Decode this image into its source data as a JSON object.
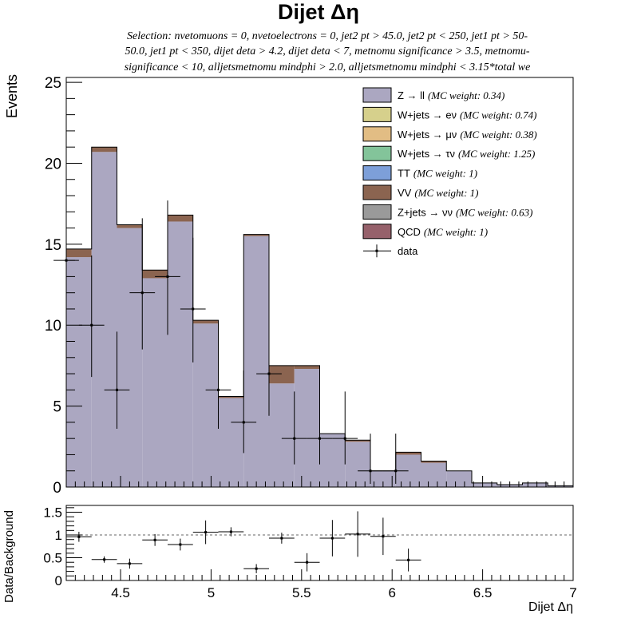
{
  "title": "Dijet Δη",
  "selection_lines": [
    "Selection: nvetomuons = 0, nvetoelectrons = 0, jet2 pt > 45.0, jet2 pt < 250, jet1 pt > 50-",
    "50.0, jet1 pt < 350, dijet deta > 4.2, dijet deta < 7, metnomu significance > 3.5, metnomu-",
    "significance < 10, alljetsmetnomu mindphi > 2.0, alljetsmetnomu mindphi < 3.15*total we"
  ],
  "colors": {
    "zll": "#aba7c1",
    "vv": "#8b6450",
    "wev": "#d6d08c",
    "wmv": "#e2bd84",
    "wtv": "#83c49a",
    "tt": "#7d9fd9",
    "znn": "#9a9a9a",
    "qcd": "#96616b"
  },
  "chart_data": [
    {
      "type": "bar",
      "subtype": "stacked-histogram",
      "xlabel": "",
      "ylabel": "Events",
      "xlim": [
        4.2,
        7.0
      ],
      "ylim": [
        0,
        25.3
      ],
      "yticks": [
        0,
        5,
        10,
        15,
        20,
        25
      ],
      "bin_edges": [
        4.2,
        4.34,
        4.48,
        4.62,
        4.76,
        4.9,
        5.04,
        5.18,
        5.32,
        5.46,
        5.6,
        5.74,
        5.88,
        6.02,
        6.16,
        6.3,
        6.44,
        6.58,
        6.72,
        6.86,
        7.0
      ],
      "legend_position": "top-right",
      "legend": [
        {
          "key": "zll",
          "label": "Z → ll",
          "weight": "(MC weight: 0.34)"
        },
        {
          "key": "wev",
          "label": "W+jets → eν",
          "weight": "(MC weight: 0.74)"
        },
        {
          "key": "wmv",
          "label": "W+jets → μν",
          "weight": "(MC weight: 0.38)"
        },
        {
          "key": "wtv",
          "label": "W+jets → τν",
          "weight": "(MC weight: 1.25)"
        },
        {
          "key": "tt",
          "label": "TT",
          "weight": "(MC weight: 1)"
        },
        {
          "key": "vv",
          "label": "VV",
          "weight": "(MC weight: 1)"
        },
        {
          "key": "znn",
          "label": "Z+jets → νν",
          "weight": "(MC weight: 0.63)"
        },
        {
          "key": "qcd",
          "label": "QCD",
          "weight": "(MC weight: 1)"
        },
        {
          "key": "data",
          "label": "data",
          "weight": ""
        }
      ],
      "series": [
        {
          "key": "zll",
          "values": [
            14.2,
            20.7,
            16.0,
            12.9,
            16.4,
            10.1,
            5.5,
            15.5,
            6.4,
            7.3,
            3.3,
            2.8,
            1.0,
            2.0,
            1.5,
            1.0,
            0.25,
            0.15,
            0.25,
            0.08
          ]
        },
        {
          "key": "vv",
          "values": [
            0.5,
            0.3,
            0.2,
            0.5,
            0.4,
            0.2,
            0.1,
            0.1,
            1.1,
            0.2,
            0.0,
            0.1,
            0.0,
            0.15,
            0.1,
            0.0,
            0.0,
            0.0,
            0.0,
            0.0
          ]
        }
      ],
      "data_points": [
        {
          "x": 4.2,
          "xerr": 0.07,
          "y": 14,
          "yerr": [
            3.7,
            4.8
          ]
        },
        {
          "x": 4.34,
          "xerr": 0.07,
          "y": 10,
          "yerr": [
            3.2,
            4.3
          ]
        },
        {
          "x": 4.48,
          "xerr": 0.07,
          "y": 6,
          "yerr": [
            2.4,
            3.6
          ]
        },
        {
          "x": 4.62,
          "xerr": 0.07,
          "y": 12,
          "yerr": [
            3.5,
            4.6
          ]
        },
        {
          "x": 4.76,
          "xerr": 0.07,
          "y": 13,
          "yerr": [
            3.6,
            4.7
          ]
        },
        {
          "x": 4.9,
          "xerr": 0.07,
          "y": 11,
          "yerr": [
            3.3,
            4.4
          ]
        },
        {
          "x": 5.04,
          "xerr": 0.07,
          "y": 6,
          "yerr": [
            2.4,
            3.6
          ]
        },
        {
          "x": 5.18,
          "xerr": 0.07,
          "y": 4,
          "yerr": [
            1.9,
            3.2
          ]
        },
        {
          "x": 5.32,
          "xerr": 0.07,
          "y": 7,
          "yerr": [
            2.6,
            3.8
          ]
        },
        {
          "x": 5.46,
          "xerr": 0.07,
          "y": 3,
          "yerr": [
            1.6,
            2.9
          ]
        },
        {
          "x": 5.6,
          "xerr": 0.07,
          "y": 3,
          "yerr": [
            1.6,
            2.9
          ]
        },
        {
          "x": 5.74,
          "xerr": 0.07,
          "y": 3,
          "yerr": [
            1.6,
            2.9
          ]
        },
        {
          "x": 5.88,
          "xerr": 0.07,
          "y": 1,
          "yerr": [
            0.8,
            2.3
          ]
        },
        {
          "x": 6.02,
          "xerr": 0.07,
          "y": 1,
          "yerr": [
            0.8,
            2.3
          ]
        }
      ]
    },
    {
      "type": "scatter",
      "subtype": "ratio",
      "xlabel": "Dijet Δη",
      "ylabel": "Data/Background",
      "xlim": [
        4.2,
        7.0
      ],
      "ylim": [
        0,
        1.65
      ],
      "xticks": [
        4.5,
        5,
        5.5,
        6,
        6.5,
        7
      ],
      "yticks": [
        0,
        0.5,
        1,
        1.5
      ],
      "reference_line": 1,
      "points": [
        {
          "x": 4.27,
          "xerr": 0.07,
          "y": 0.96,
          "yerr": 0.11
        },
        {
          "x": 4.41,
          "xerr": 0.07,
          "y": 0.46,
          "yerr": 0.07
        },
        {
          "x": 4.55,
          "xerr": 0.07,
          "y": 0.37,
          "yerr": 0.11
        },
        {
          "x": 4.69,
          "xerr": 0.07,
          "y": 0.89,
          "yerr": 0.13
        },
        {
          "x": 4.83,
          "xerr": 0.07,
          "y": 0.79,
          "yerr": 0.13
        },
        {
          "x": 4.97,
          "xerr": 0.07,
          "y": 1.06,
          "yerr": 0.26
        },
        {
          "x": 5.11,
          "xerr": 0.07,
          "y": 1.07,
          "yerr": 0.1
        },
        {
          "x": 5.25,
          "xerr": 0.07,
          "y": 0.26,
          "yerr": 0.1
        },
        {
          "x": 5.39,
          "xerr": 0.07,
          "y": 0.93,
          "yerr": 0.12
        },
        {
          "x": 5.53,
          "xerr": 0.07,
          "y": 0.4,
          "yerr": 0.2
        },
        {
          "x": 5.67,
          "xerr": 0.07,
          "y": 0.93,
          "yerr": 0.4
        },
        {
          "x": 5.81,
          "xerr": 0.07,
          "y": 1.02,
          "yerr": 0.5
        },
        {
          "x": 5.95,
          "xerr": 0.07,
          "y": 0.97,
          "yerr": 0.41
        },
        {
          "x": 6.09,
          "xerr": 0.07,
          "y": 0.45,
          "yerr": 0.25
        }
      ]
    }
  ]
}
